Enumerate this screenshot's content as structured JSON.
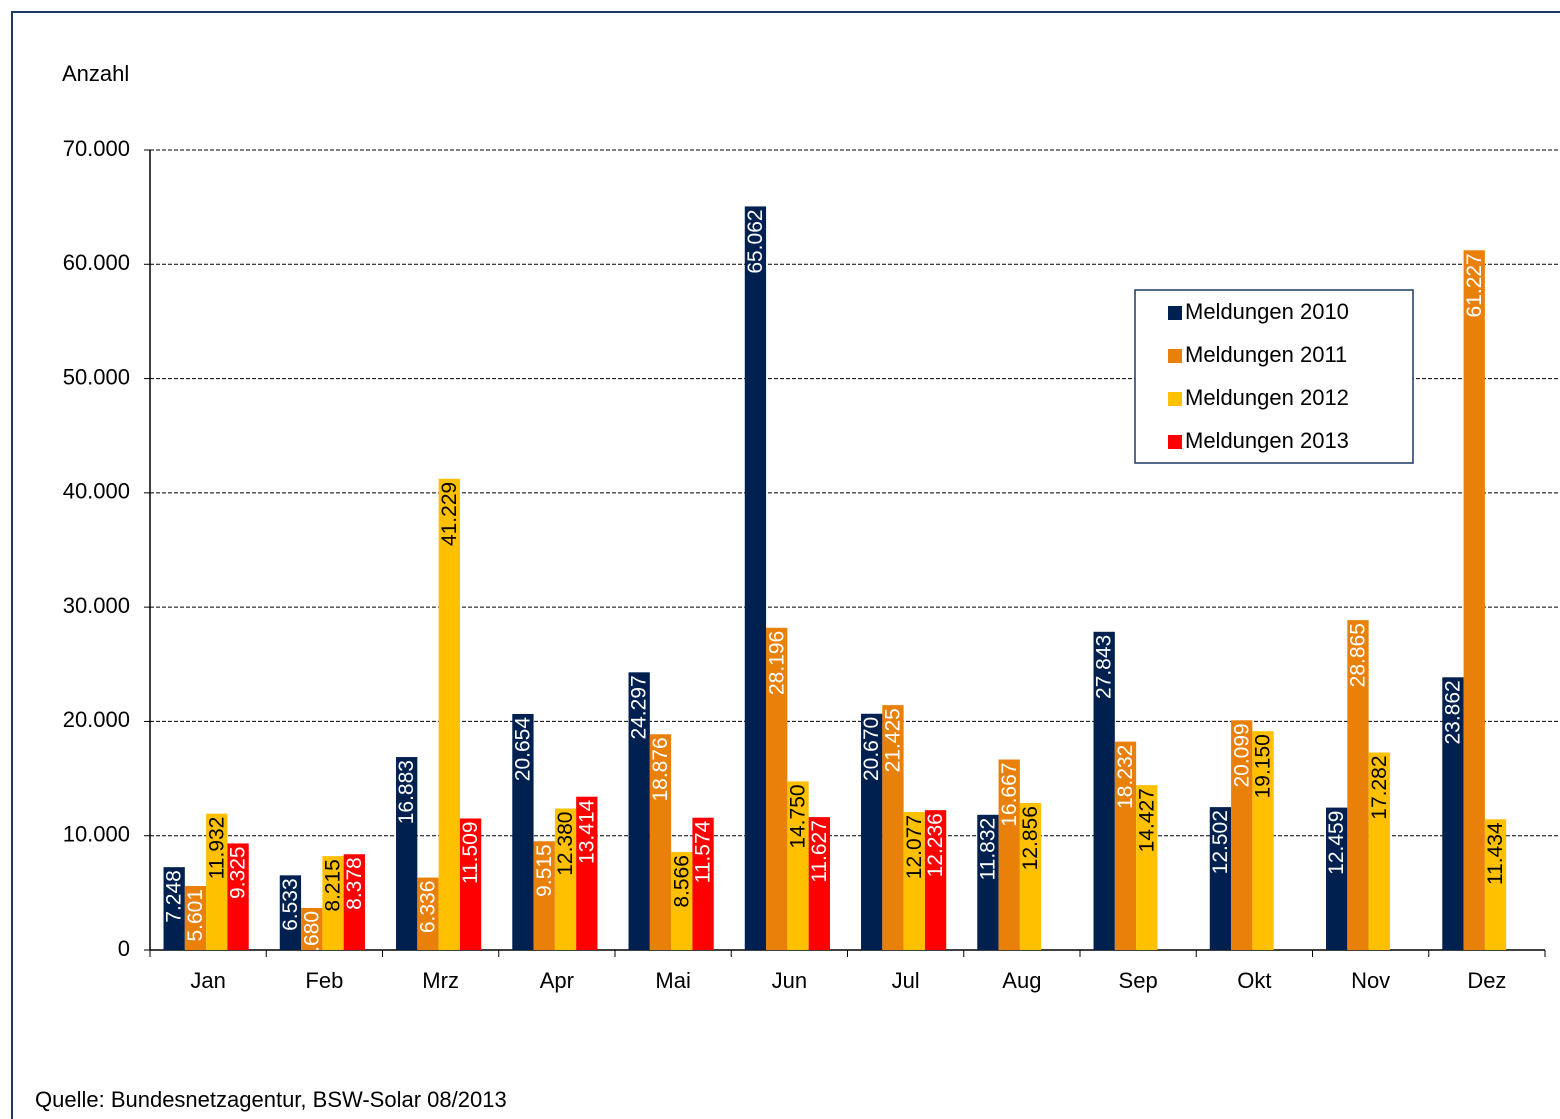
{
  "chart_data": {
    "type": "bar",
    "y_axis_label": "Anzahl",
    "source": "Quelle: Bundesnetzagentur, BSW-Solar 08/2013",
    "categories": [
      "Jan",
      "Feb",
      "Mrz",
      "Apr",
      "Mai",
      "Jun",
      "Jul",
      "Aug",
      "Sep",
      "Okt",
      "Nov",
      "Dez"
    ],
    "series": [
      {
        "name": "Meldungen 2010",
        "color": "#002050",
        "values": [
          7248,
          6533,
          16883,
          20654,
          24297,
          65062,
          20670,
          11832,
          27843,
          12502,
          12459,
          23862
        ],
        "value_labels": [
          "7.248",
          "6.533",
          "16.883",
          "20.654",
          "24.297",
          "65.062",
          "20.670",
          "11.832",
          "27.843",
          "12.502",
          "12.459",
          "23.862"
        ]
      },
      {
        "name": "Meldungen 2011",
        "color": "#e8800a",
        "values": [
          5601,
          3680,
          6336,
          9515,
          18876,
          28196,
          21425,
          16667,
          18232,
          20099,
          28865,
          61227
        ],
        "value_labels": [
          "5.601",
          "3.680",
          "6.336",
          "9.515",
          "18.876",
          "28.196",
          "21.425",
          "16.667",
          "18.232",
          "20.099",
          "28.865",
          "61.227"
        ]
      },
      {
        "name": "Meldungen 2012",
        "color": "#ffc000",
        "values": [
          11932,
          8215,
          41229,
          12380,
          8566,
          14750,
          12077,
          12856,
          14427,
          19150,
          17282,
          11434
        ],
        "value_labels": [
          "11.932",
          "8.215",
          "41.229",
          "12.380",
          "8.566",
          "14.750",
          "12.077",
          "12.856",
          "14.427",
          "19.150",
          "17.282",
          "11.434"
        ]
      },
      {
        "name": "Meldungen 2013",
        "color": "#ff0000",
        "values": [
          9325,
          8378,
          11509,
          13414,
          11574,
          11627,
          12236,
          null,
          null,
          null,
          null,
          null
        ],
        "value_labels": [
          "9.325",
          "8.378",
          "11.509",
          "13.414",
          "11.574",
          "11.627",
          "12.236",
          null,
          null,
          null,
          null,
          null
        ]
      }
    ],
    "ylim": [
      0,
      70000
    ],
    "yticks": [
      0,
      {
        "value": 10000,
        "label": "10.000"
      },
      {
        "value": 20000,
        "label": "20.000"
      },
      {
        "value": 30000,
        "label": "30.000"
      },
      {
        "value": 40000,
        "label": "40.000"
      },
      {
        "value": 50000,
        "label": "50.000"
      },
      {
        "value": 60000,
        "label": "60.000"
      },
      {
        "value": 70000,
        "label": "70.000"
      }
    ],
    "grid": true,
    "legend": "upper right"
  }
}
